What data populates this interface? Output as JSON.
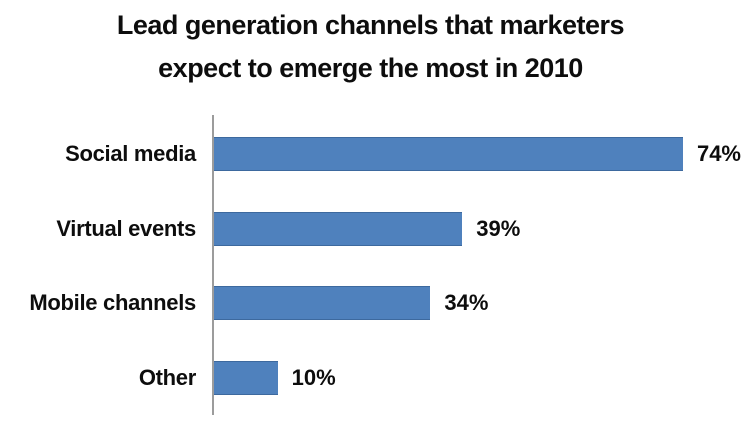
{
  "chart_data": {
    "type": "bar",
    "orientation": "horizontal",
    "title": "Lead generation channels that marketers expect to emerge the most in 2010",
    "title_lines": [
      "Lead generation channels that marketers",
      "expect to emerge the most in 2010"
    ],
    "categories": [
      "Social media",
      "Virtual events",
      "Mobile channels",
      "Other"
    ],
    "values": [
      74,
      39,
      34,
      10
    ],
    "value_labels": [
      "74%",
      "39%",
      "34%",
      "10%"
    ],
    "xlabel": "",
    "ylabel": "",
    "xlim": [
      0,
      82.8
    ],
    "grid": false,
    "legend": null,
    "data_labels": "outside-end",
    "colors": {
      "bar_fill": "#4f81bd",
      "axis_line": "#9c9c9c",
      "text": "#0d0d0d",
      "background": "#ffffff"
    }
  }
}
